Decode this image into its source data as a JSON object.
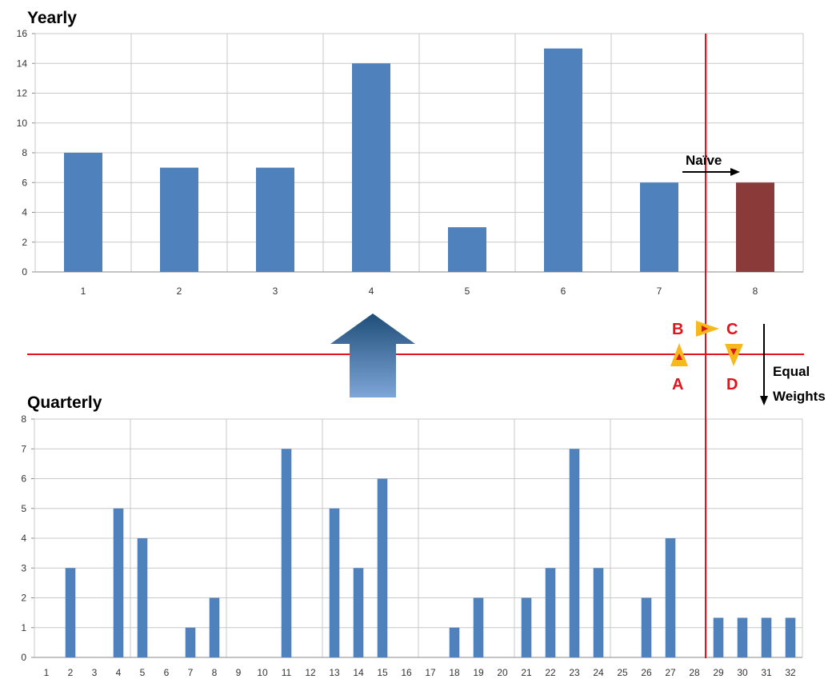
{
  "chart_data": [
    {
      "type": "bar",
      "title": "Yearly",
      "categories": [
        "1",
        "2",
        "3",
        "4",
        "5",
        "6",
        "7",
        "8"
      ],
      "values": [
        8,
        7,
        7,
        14,
        3,
        15,
        6,
        6
      ],
      "highlight_index": 7,
      "ylim": [
        0,
        16
      ],
      "yticks": [
        "0",
        "2",
        "4",
        "6",
        "8",
        "10",
        "12",
        "14",
        "16"
      ],
      "grid": true,
      "colors": {
        "bar": "#4f81bd",
        "highlight": "#8b3a3a",
        "grid": "#c8c8c8"
      }
    },
    {
      "type": "bar",
      "title": "Quarterly",
      "categories": [
        "1",
        "2",
        "3",
        "4",
        "5",
        "6",
        "7",
        "8",
        "9",
        "10",
        "11",
        "12",
        "13",
        "14",
        "15",
        "16",
        "17",
        "18",
        "19",
        "20",
        "21",
        "22",
        "23",
        "24",
        "25",
        "26",
        "27",
        "28",
        "29",
        "30",
        "31",
        "32"
      ],
      "values": [
        0,
        3,
        0,
        5,
        4,
        0,
        1,
        2,
        0,
        0,
        7,
        0,
        5,
        3,
        6,
        0,
        0,
        1,
        2,
        0,
        2,
        3,
        7,
        3,
        0,
        2,
        4,
        0,
        1.33,
        1.33,
        1.33,
        1.33
      ],
      "ylim": [
        0,
        8
      ],
      "yticks": [
        "0",
        "1",
        "2",
        "3",
        "4",
        "5",
        "6",
        "7",
        "8"
      ],
      "grid": true,
      "colors": {
        "bar": "#4f81bd",
        "grid": "#c8c8c8"
      }
    }
  ],
  "annotations": {
    "naive_label": "Naïve",
    "equal_weights_line1": "Equal",
    "equal_weights_line2": "Weights",
    "markers": {
      "a": "A",
      "b": "B",
      "c": "C",
      "d": "D"
    },
    "colors": {
      "divider": "#e0141c",
      "marker_fill": "#f6b81b",
      "marker_dot": "#e0141c",
      "arrow_top": "#1f4e79",
      "arrow_bottom": "#7ea6d8"
    }
  }
}
